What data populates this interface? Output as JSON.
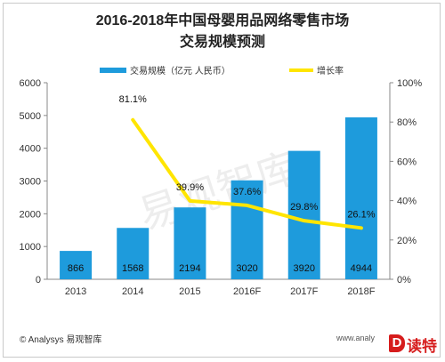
{
  "title_line1": "2016-2018年中国母婴用品网络零售市场",
  "title_line2": "交易规模预测",
  "watermark": "易观智库",
  "footer_left": "© Analysys 易观智库",
  "footer_right": "www.analy",
  "logo": {
    "mark": "D",
    "text": "读特"
  },
  "colors": {
    "bar": "#1e9bdc",
    "line": "#ffe500",
    "axis": "#888888",
    "grid": "#d9d9d9"
  },
  "chart_data": {
    "type": "bar+line",
    "categories": [
      "2013",
      "2014",
      "2015",
      "2016F",
      "2017F",
      "2018F"
    ],
    "series": [
      {
        "name": "交易规模（亿元 人民币）",
        "type": "bar",
        "axis": "left",
        "values": [
          866,
          1568,
          2194,
          3020,
          3920,
          4944
        ],
        "labels": [
          "866",
          "1568",
          "2194",
          "3020",
          "3920",
          "4944"
        ]
      },
      {
        "name": "增长率",
        "type": "line",
        "axis": "right",
        "values": [
          null,
          81.1,
          39.9,
          37.6,
          29.8,
          26.1
        ],
        "labels": [
          "",
          "81.1%",
          "39.9%",
          "37.6%",
          "29.8%",
          "26.1%"
        ]
      }
    ],
    "y_left": {
      "min": 0,
      "max": 6000,
      "ticks": [
        "0",
        "1000",
        "2000",
        "3000",
        "4000",
        "5000",
        "6000"
      ]
    },
    "y_right": {
      "min": 0,
      "max": 100,
      "ticks": [
        "0%",
        "20%",
        "40%",
        "60%",
        "80%",
        "100%"
      ]
    },
    "legend_position": "top",
    "grid": false
  }
}
